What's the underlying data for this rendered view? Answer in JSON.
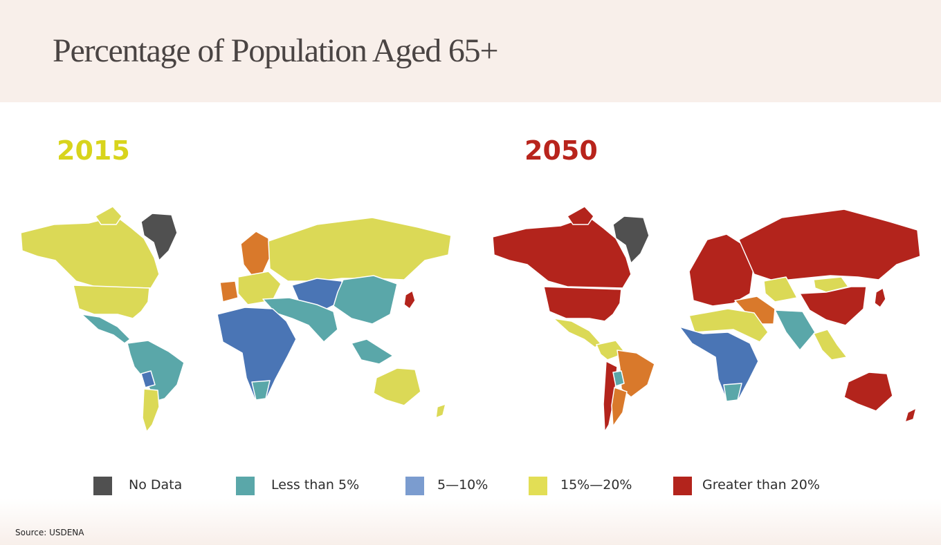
{
  "header": {
    "title": "Percentage of Population Aged 65+"
  },
  "maps": [
    {
      "year": "2015",
      "year_color": "#d8d41c"
    },
    {
      "year": "2050",
      "year_color": "#b8241c"
    }
  ],
  "colors": {
    "no_data": "#505050",
    "less_than_5": "#5aa7a9",
    "five_to_ten": "#4a75b5",
    "ten_to_fifteen": "#d9792b",
    "fifteen_to_twenty": "#dbd956",
    "greater_than_20": "#b3241c"
  },
  "legend": [
    {
      "label": "No Data",
      "color": "#505050"
    },
    {
      "label": "Less than 5%",
      "color": "#5aa7a9"
    },
    {
      "label": "5—10%",
      "color": "#7b9ccf"
    },
    {
      "label": "15%—20%",
      "color": "#e2de55"
    },
    {
      "label": "Greater than 20%",
      "color": "#b3241c"
    }
  ],
  "source": "Source: USDENA"
}
